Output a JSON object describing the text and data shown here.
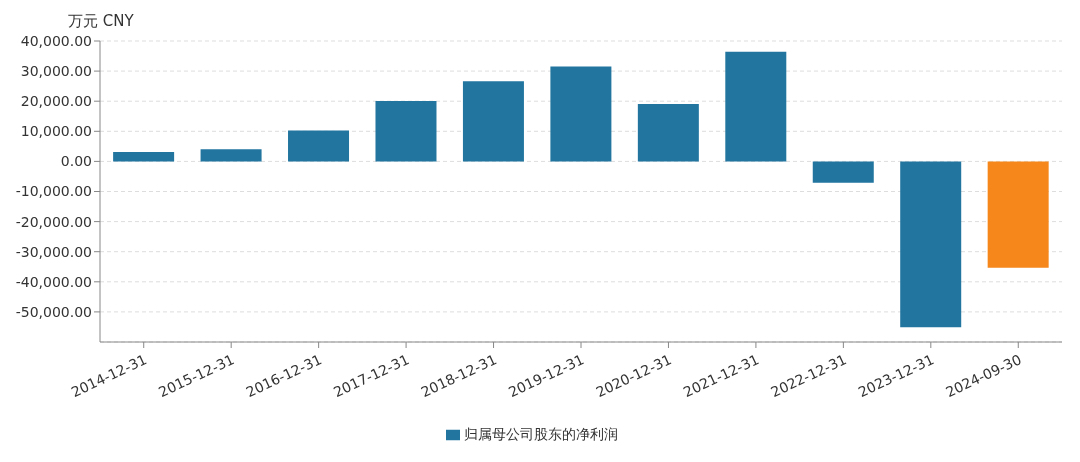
{
  "chart_data": {
    "type": "bar",
    "ylabel": "万元 CNY",
    "categories": [
      "2014-12-31",
      "2015-12-31",
      "2016-12-31",
      "2017-12-31",
      "2018-12-31",
      "2019-12-31",
      "2020-12-31",
      "2021-12-31",
      "2022-12-31",
      "2023-12-31",
      "2024-09-30"
    ],
    "series": [
      {
        "name": "归属母公司股东的净利润",
        "color": "#21759f",
        "colors": [
          "#21759f",
          "#21759f",
          "#21759f",
          "#21759f",
          "#21759f",
          "#21759f",
          "#21759f",
          "#21759f",
          "#21759f",
          "#21759f",
          "#f5871b"
        ],
        "values": [
          3100,
          4000,
          10300,
          20100,
          26600,
          31500,
          19100,
          36400,
          -7100,
          -55100,
          -35300
        ]
      }
    ],
    "ylim": [
      -60000,
      40000
    ],
    "yticks": [
      {
        "value": -50000,
        "label": "-50,000.00"
      },
      {
        "value": -40000,
        "label": "-40,000.00"
      },
      {
        "value": -30000,
        "label": "-30,000.00"
      },
      {
        "value": -20000,
        "label": "-20,000.00"
      },
      {
        "value": -10000,
        "label": "-10,000.00"
      },
      {
        "value": 0,
        "label": "0.00"
      },
      {
        "value": 10000,
        "label": "10,000.00"
      },
      {
        "value": 20000,
        "label": "20,000.00"
      },
      {
        "value": 30000,
        "label": "30,000.00"
      },
      {
        "value": 40000,
        "label": "40,000.00"
      }
    ],
    "grid": "y",
    "legend": "bottom"
  }
}
